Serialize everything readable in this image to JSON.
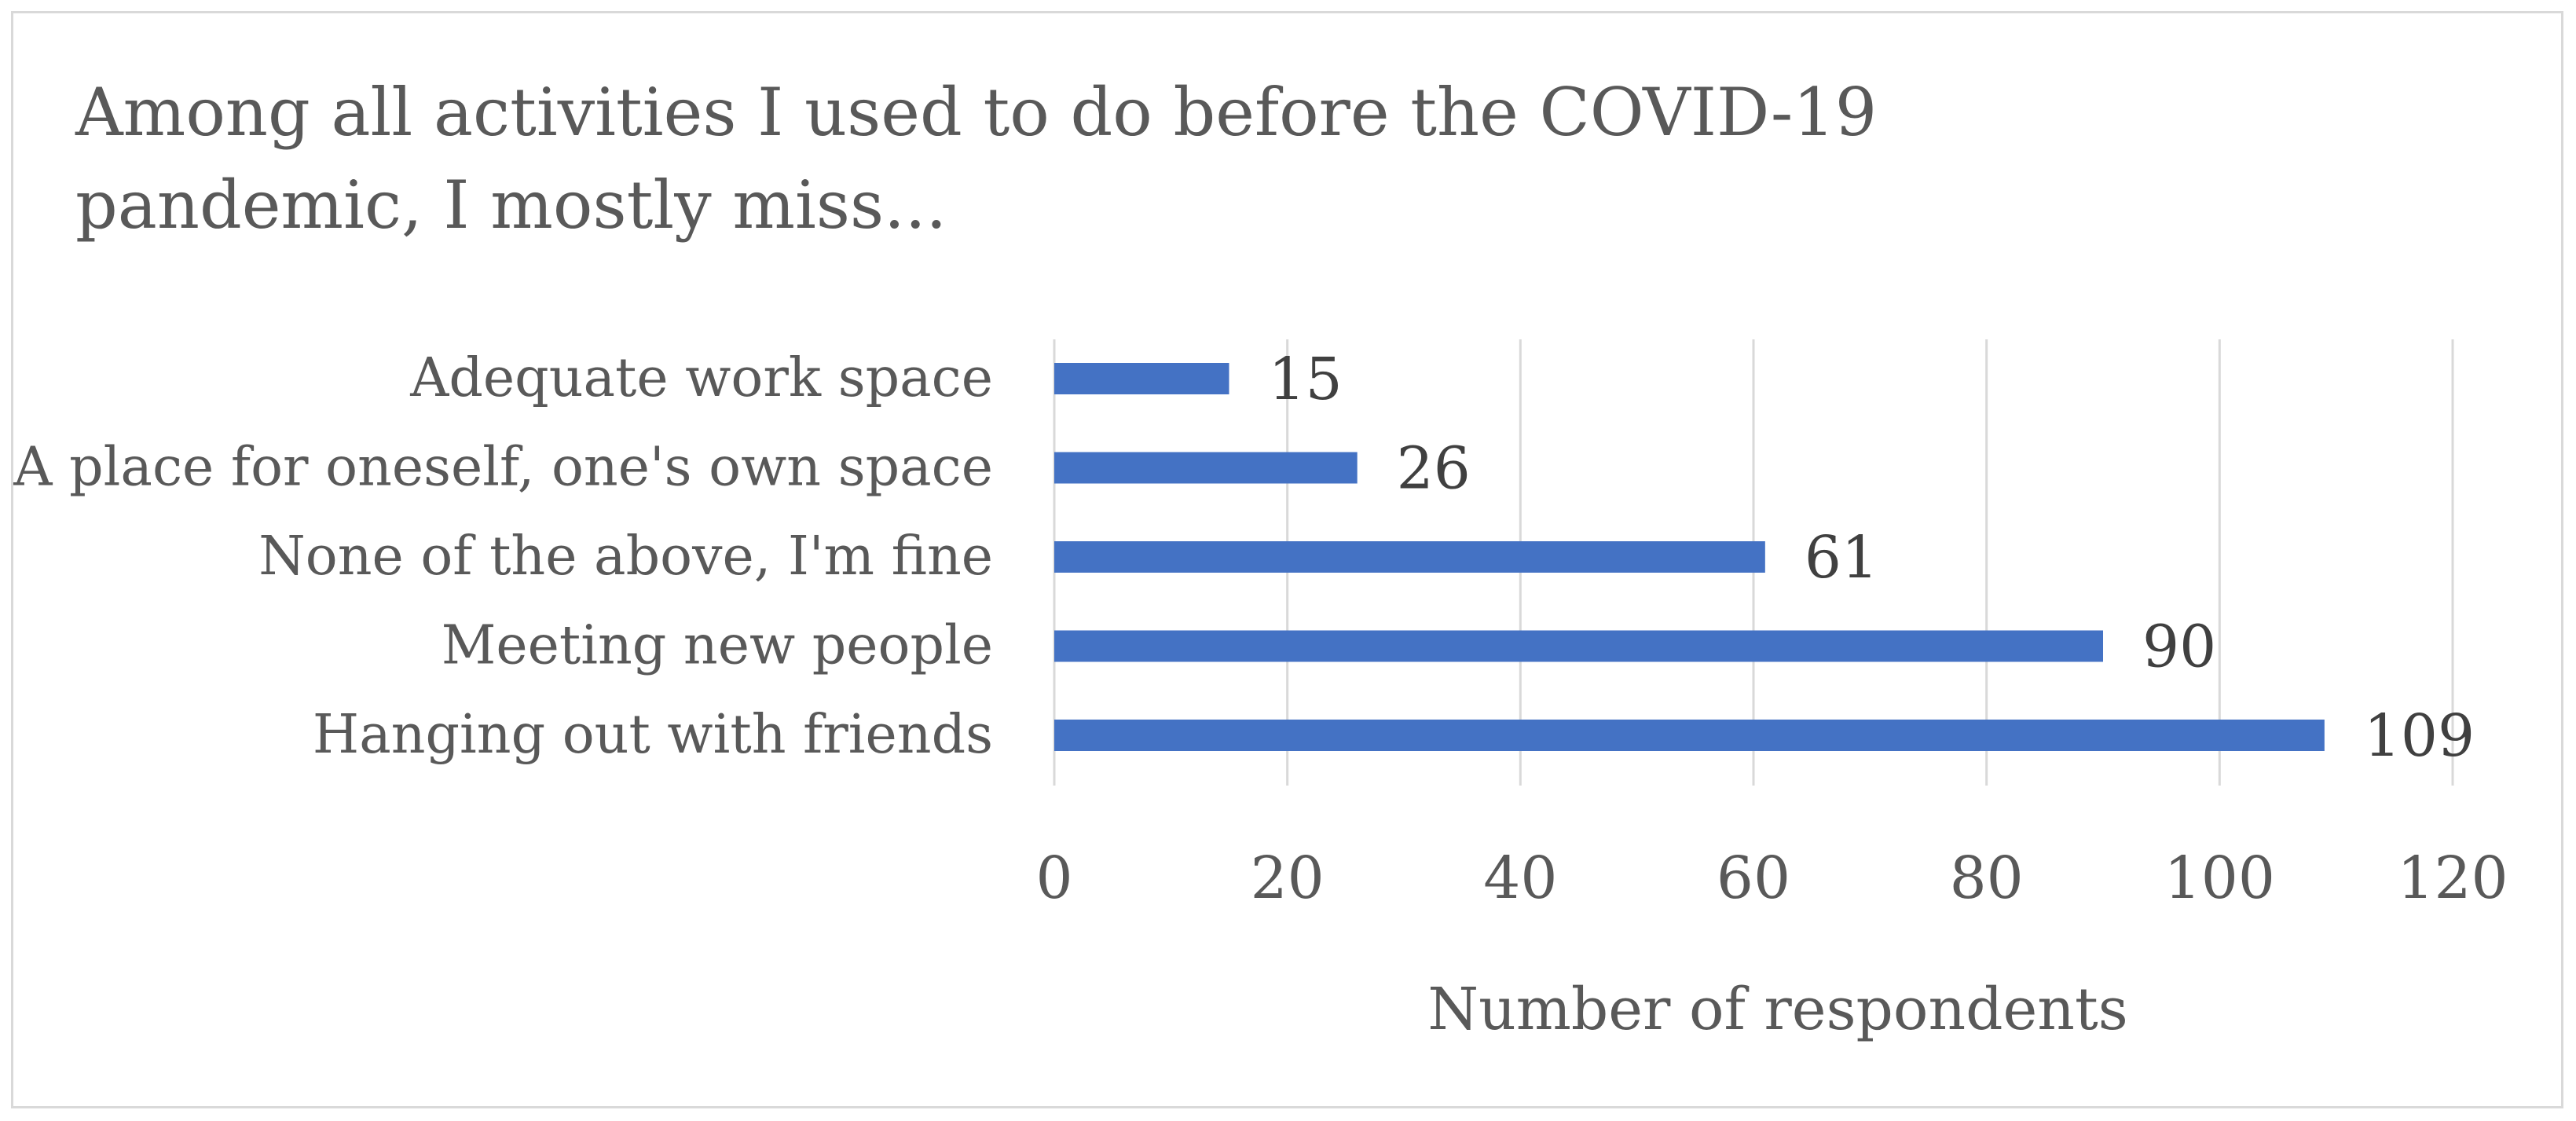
{
  "chart_data": {
    "type": "bar",
    "orientation": "horizontal",
    "title": "Among all activities I used to do before the COVID-19 pandemic, I mostly miss...",
    "xlabel": "Number of respondents",
    "ylabel": "",
    "categories": [
      "Adequate work space",
      "A place for oneself, one's own space",
      "None of the above, I'm fine",
      "Meeting new people",
      "Hanging out with friends"
    ],
    "values": [
      15,
      26,
      61,
      90,
      109
    ],
    "xlim": [
      0,
      120
    ],
    "xticks": [
      0,
      20,
      40,
      60,
      80,
      100,
      120
    ],
    "grid": "vertical",
    "data_labels": true,
    "legend": "none",
    "colors": {
      "bar": "#4472c4",
      "grid": "#d9d9d9",
      "text": "#595959",
      "label": "#404040"
    }
  }
}
